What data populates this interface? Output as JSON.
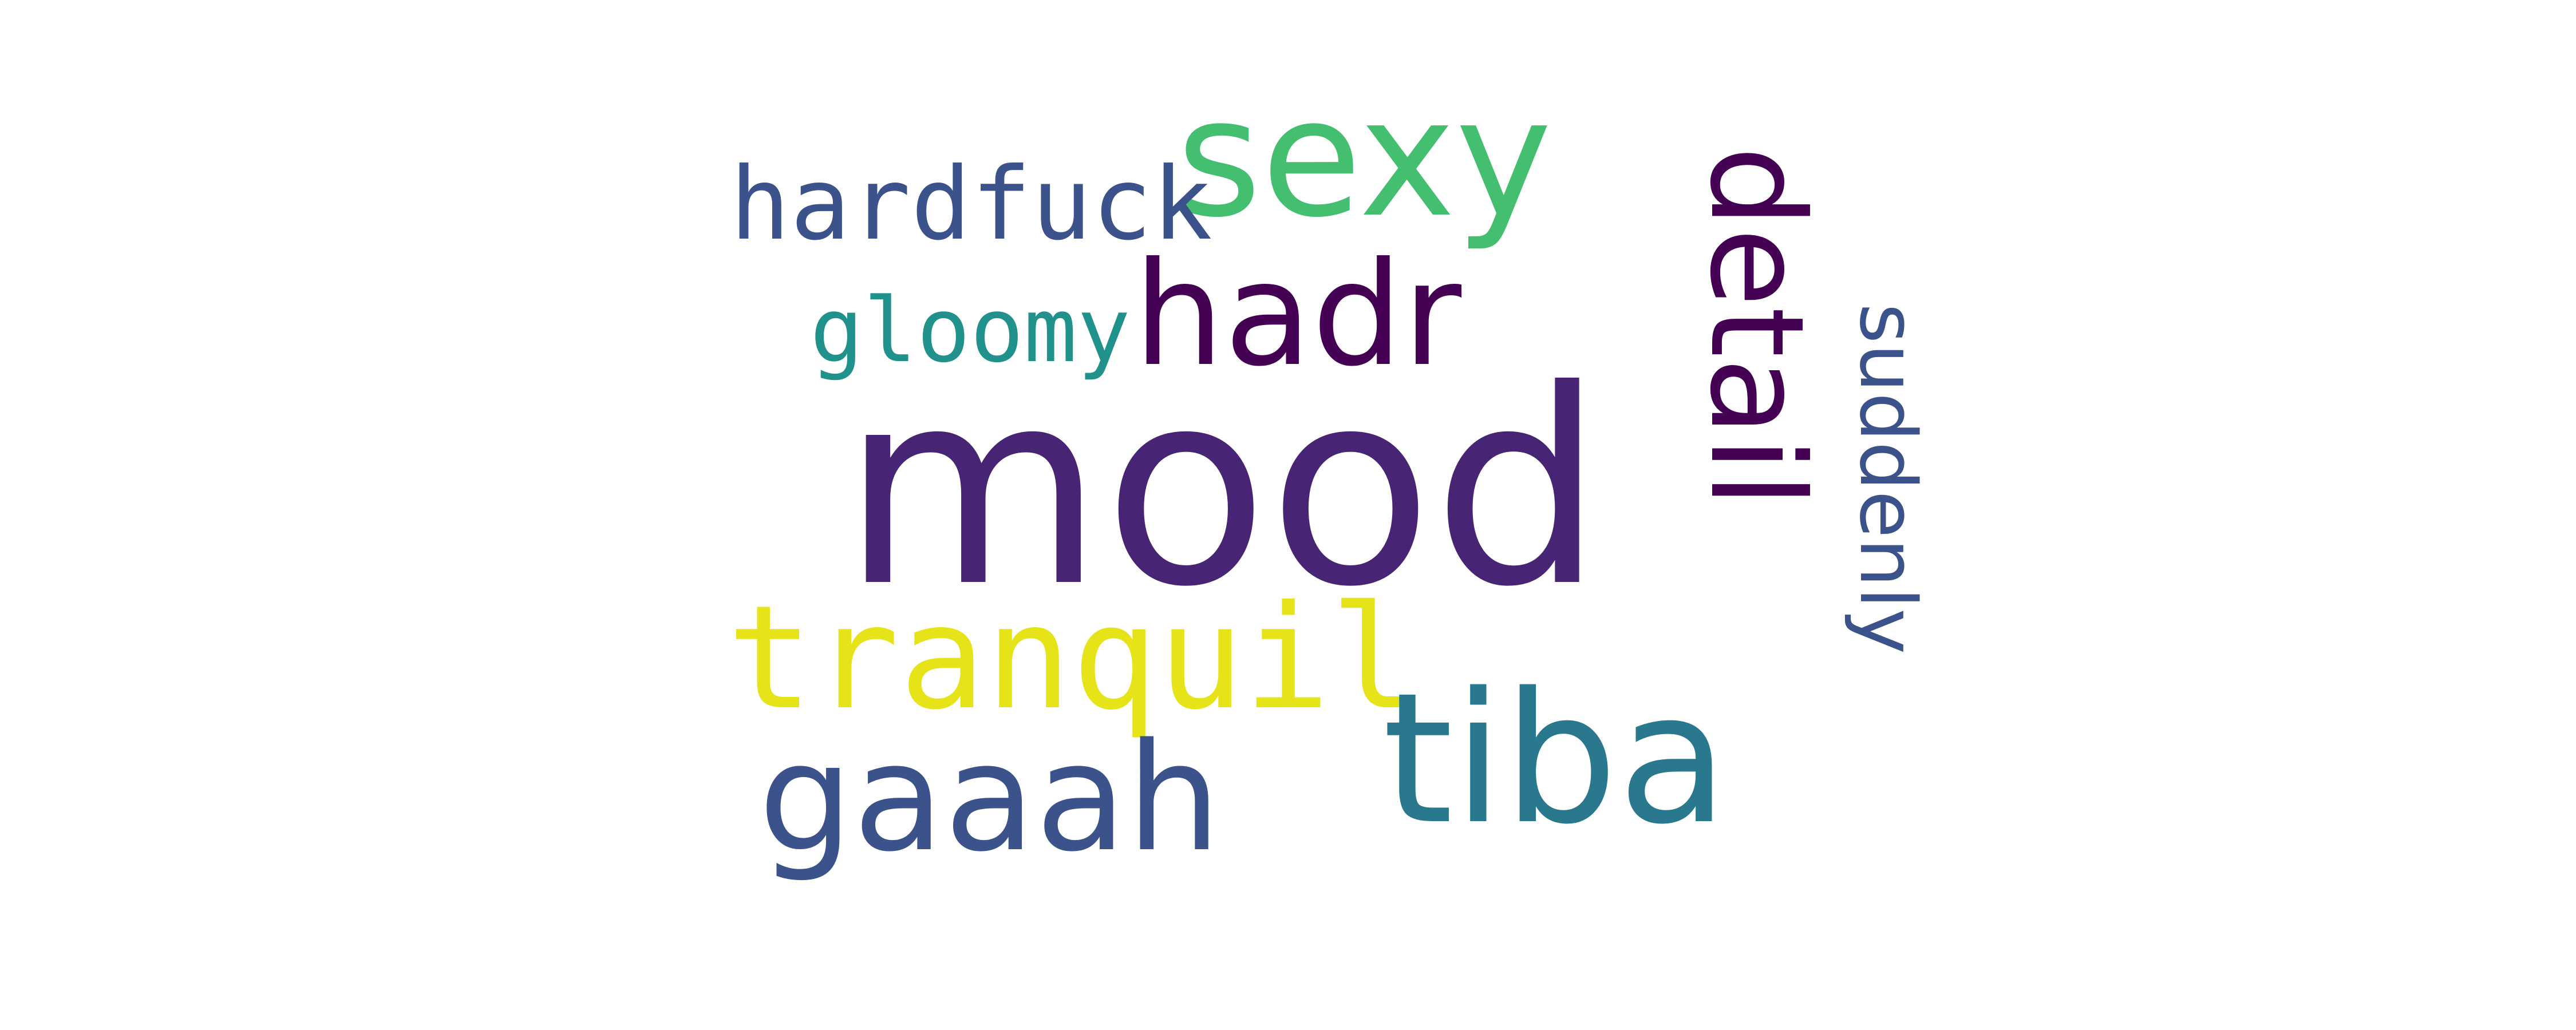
{
  "words": [
    {
      "id": "mood",
      "text": "mood",
      "color": "#482475",
      "orientation": "horizontal"
    },
    {
      "id": "sexy",
      "text": "sexy",
      "color": "#44bf70",
      "orientation": "horizontal"
    },
    {
      "id": "hadr",
      "text": "hadr",
      "color": "#440154",
      "orientation": "horizontal"
    },
    {
      "id": "hardfuck",
      "text": "hardfuck",
      "color": "#3b528b",
      "orientation": "horizontal"
    },
    {
      "id": "gloomy",
      "text": "gloomy",
      "color": "#21918c",
      "orientation": "horizontal"
    },
    {
      "id": "detail",
      "text": "detail",
      "color": "#440154",
      "orientation": "vertical"
    },
    {
      "id": "suddenly",
      "text": "suddenly",
      "color": "#3b528b",
      "orientation": "vertical"
    },
    {
      "id": "tranquil",
      "text": "tranquil",
      "color": "#e6e419",
      "orientation": "horizontal"
    },
    {
      "id": "tiba",
      "text": "tiba",
      "color": "#2a788e",
      "orientation": "horizontal"
    },
    {
      "id": "gaaah",
      "text": "gaaah",
      "color": "#3b528b",
      "orientation": "horizontal"
    }
  ]
}
